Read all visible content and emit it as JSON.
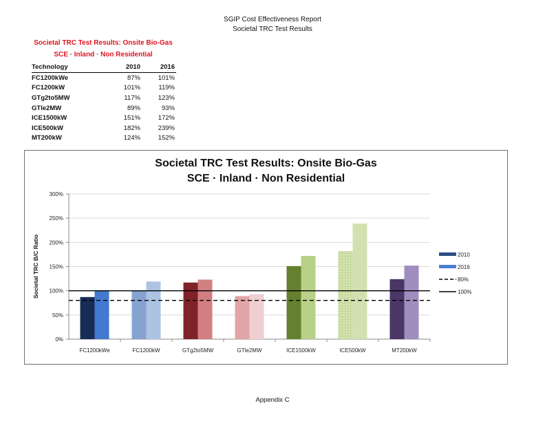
{
  "page": {
    "header_line1": "SGIP Cost Effectiveness Report",
    "header_line2": "Societal TRC Test Results",
    "footer": "Appendix C"
  },
  "table": {
    "title_line1": "Societal TRC Test Results:  Onsite Bio-Gas",
    "title_line2": "SCE · Inland · Non Residential",
    "columns": [
      "Technology",
      "2010",
      "2016"
    ],
    "rows": [
      [
        "FC1200kWe",
        "87%",
        "101%"
      ],
      [
        "FC1200kW",
        "101%",
        "119%"
      ],
      [
        "GTg2to5MW",
        "117%",
        "123%"
      ],
      [
        "GTle2MW",
        "89%",
        "93%"
      ],
      [
        "ICE1500kW",
        "151%",
        "172%"
      ],
      [
        "ICE500kW",
        "182%",
        "239%"
      ],
      [
        "MT200kW",
        "124%",
        "152%"
      ]
    ]
  },
  "chart_data": {
    "type": "bar",
    "title": "Societal TRC Test Results:  Onsite Bio-Gas",
    "subtitle": "SCE · Inland · Non Residential",
    "xlabel": "",
    "ylabel": "Societal TRC B/C Ratio",
    "ylim": [
      0,
      300
    ],
    "yticks": [
      "0%",
      "50%",
      "100%",
      "150%",
      "200%",
      "250%",
      "300%"
    ],
    "grid": true,
    "legend_position": "right",
    "categories": [
      "FC1200kWe",
      "FC1200kW",
      "GTg2to5MW",
      "GTle2MW",
      "ICE1500kW",
      "ICE500kW",
      "MT200kW"
    ],
    "series": [
      {
        "name": "2010",
        "values": [
          87,
          101,
          117,
          89,
          151,
          182,
          124
        ]
      },
      {
        "name": "2016",
        "values": [
          101,
          119,
          123,
          93,
          172,
          239,
          152
        ]
      }
    ],
    "reference_lines": [
      {
        "name": "80%",
        "value": 80,
        "style": "dashed"
      },
      {
        "name": "100%",
        "value": 100,
        "style": "solid"
      }
    ],
    "bar_colors": {
      "2010": [
        "#172d55",
        "#86a3d0",
        "#7f2328",
        "#e1a5a8",
        "#65802f",
        "#c6d99c",
        "#4b3667"
      ],
      "2016": [
        "#4379cf",
        "#adc3e4",
        "#d27f82",
        "#efcfd1",
        "#b8d088",
        "#d3e1b0",
        "#a08ec0"
      ]
    },
    "legend": [
      {
        "label": "2010",
        "color": "#2b4d86",
        "kind": "swatch"
      },
      {
        "label": "2016",
        "color": "#4a7fd0",
        "kind": "swatch"
      },
      {
        "label": "80%",
        "color": "#000000",
        "kind": "dashed"
      },
      {
        "label": "100%",
        "color": "#000000",
        "kind": "solid"
      }
    ]
  }
}
